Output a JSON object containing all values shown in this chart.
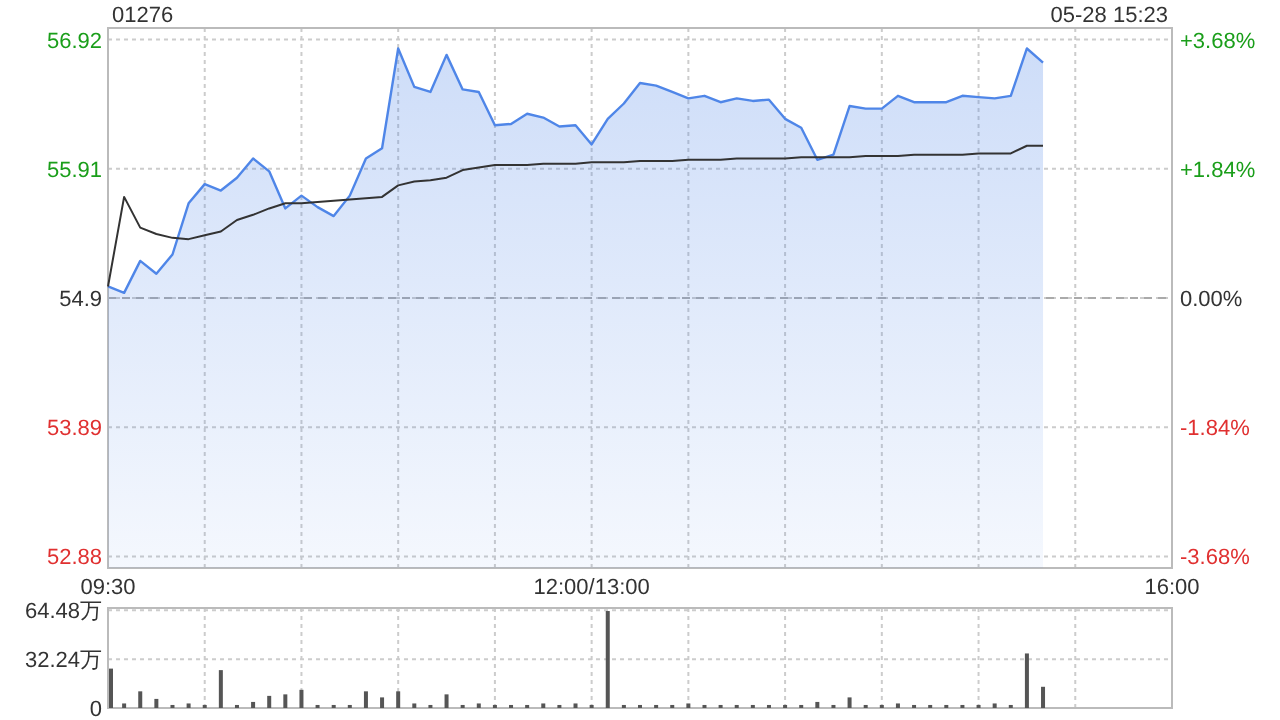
{
  "chart_data": [
    {
      "type": "line",
      "title": "01276",
      "subtitle": "05-28 15:23",
      "categories": [
        "09:30",
        null,
        null,
        null,
        null,
        null,
        null,
        null,
        null,
        null,
        null,
        null,
        null,
        null,
        null,
        null,
        null,
        null,
        null,
        null,
        null,
        null,
        null,
        null,
        null,
        null,
        null,
        null,
        null,
        null,
        "12:00/13:00",
        null,
        null,
        null,
        null,
        null,
        null,
        null,
        null,
        null,
        null,
        null,
        null,
        null,
        null,
        null,
        null,
        null,
        null,
        null,
        null,
        null,
        null,
        null,
        null,
        null,
        null,
        null,
        null,
        null,
        null,
        null,
        null,
        null,
        null,
        null,
        "16:00"
      ],
      "ylim": [
        52.79,
        57.01
      ],
      "yticks": [
        52.88,
        53.89,
        54.9,
        55.91,
        56.92
      ],
      "y2lim": [
        -3.85,
        3.85
      ],
      "y2ticks": [
        {
          "value": -3.68,
          "label": "-3.68%"
        },
        {
          "value": -1.84,
          "label": "-1.84%"
        },
        {
          "value": 0,
          "label": "0.00%"
        },
        {
          "value": 1.84,
          "label": "+1.84%"
        },
        {
          "value": 3.68,
          "label": "+3.68%"
        }
      ],
      "grid": true,
      "ref_lines": [
        {
          "axis": "y",
          "value": 54.9,
          "color": "#aaaaaa",
          "line_style": "dashed"
        }
      ],
      "series": [
        {
          "type": "area",
          "color": "#4f86e8",
          "values": [
            54.99,
            54.94,
            55.19,
            55.09,
            55.24,
            55.64,
            55.79,
            55.74,
            55.84,
            55.99,
            55.89,
            55.6,
            55.7,
            55.61,
            55.54,
            55.7,
            55.99,
            56.07,
            56.85,
            56.55,
            56.51,
            56.8,
            56.53,
            56.51,
            56.25,
            56.26,
            56.34,
            56.31,
            56.24,
            56.25,
            56.1,
            56.3,
            56.42,
            56.58,
            56.56,
            56.51,
            56.46,
            56.48,
            56.43,
            56.46,
            56.44,
            56.45,
            56.3,
            56.23,
            55.98,
            56.02,
            56.4,
            56.38,
            56.38,
            56.48,
            56.43,
            56.43,
            56.43,
            56.48,
            56.47,
            56.46,
            56.48,
            56.85,
            56.74,
            null,
            null,
            null,
            null,
            null,
            null,
            null,
            null
          ]
        },
        {
          "color": "#333333",
          "values": [
            54.99,
            55.69,
            55.45,
            55.4,
            55.37,
            55.36,
            55.39,
            55.42,
            55.51,
            55.55,
            55.6,
            55.64,
            55.64,
            55.65,
            55.66,
            55.67,
            55.68,
            55.69,
            55.78,
            55.81,
            55.82,
            55.84,
            55.9,
            55.92,
            55.94,
            55.94,
            55.94,
            55.95,
            55.95,
            55.95,
            55.96,
            55.96,
            55.96,
            55.97,
            55.97,
            55.97,
            55.98,
            55.98,
            55.98,
            55.99,
            55.99,
            55.99,
            55.99,
            56,
            56,
            56,
            56,
            56.01,
            56.01,
            56.01,
            56.02,
            56.02,
            56.02,
            56.02,
            56.03,
            56.03,
            56.03,
            56.09,
            56.09,
            null,
            null,
            null,
            null,
            null,
            null,
            null,
            null
          ]
        }
      ]
    },
    {
      "type": "bar",
      "categories": [
        null,
        null,
        null,
        null,
        null,
        null,
        null,
        null,
        null,
        null,
        null,
        null,
        null,
        null,
        null,
        null,
        null,
        null,
        null,
        null,
        null,
        null,
        null,
        null,
        null,
        null,
        null,
        null,
        null,
        null,
        null,
        null,
        null,
        null,
        null,
        null,
        null,
        null,
        null,
        null,
        null,
        null,
        null,
        null,
        null,
        null,
        null,
        null,
        null,
        null,
        null,
        null,
        null,
        null,
        null,
        null,
        null,
        null,
        null,
        null,
        null,
        null,
        null,
        null,
        null,
        null,
        null
      ],
      "ylim": [
        0,
        66
      ],
      "yticks": [
        {
          "value": 0,
          "label": "0"
        },
        {
          "value": 32.24,
          "label": "32.24万"
        },
        {
          "value": 64.48,
          "label": "64.48万"
        }
      ],
      "grid": true,
      "tick_labels": "y",
      "series": [
        {
          "color": "#555555",
          "values": [
            26,
            3,
            11,
            6,
            2,
            3,
            2,
            25,
            2,
            4,
            8,
            9,
            12,
            2,
            2,
            2,
            11,
            7,
            11,
            3,
            2,
            9,
            2,
            3,
            2,
            2,
            2,
            3,
            2,
            3,
            2,
            64,
            2,
            2,
            2,
            2,
            3,
            2,
            2,
            2,
            2,
            2,
            2,
            2,
            4,
            2,
            7,
            2,
            2,
            3,
            2,
            2,
            2,
            2,
            2,
            3,
            2,
            36,
            14,
            null,
            null,
            null,
            null,
            null,
            null,
            null,
            null
          ]
        }
      ]
    }
  ]
}
